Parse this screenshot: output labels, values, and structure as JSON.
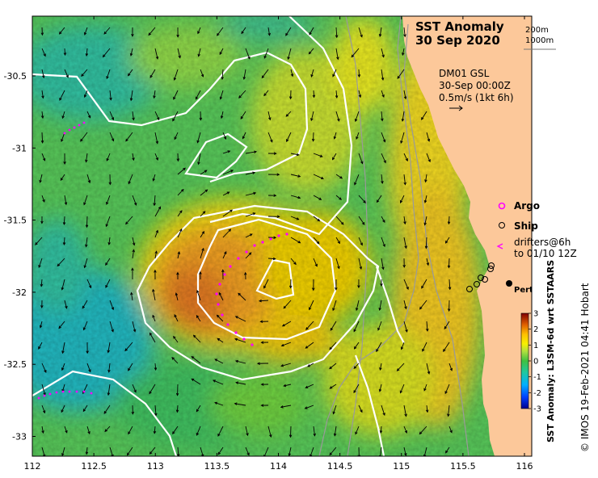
{
  "title_line1": "SST Anomaly",
  "title_line2": "30 Sep 2020",
  "depth_labels": [
    "200m",
    "1000m"
  ],
  "velocity_info": {
    "line1": "DM01 GSL",
    "line2": "30-Sep 00:00Z",
    "line3": "0.5m/s (1kt 6h)"
  },
  "legend": {
    "argo": "Argo",
    "ship": "Ship",
    "drifters_line1": "drifters@6h",
    "drifters_line2": "to 01/10 12Z"
  },
  "city_label": "Perth",
  "colorbar": {
    "label": "SST Anomaly: L3SM-6d wrt SSTAARS",
    "ticks": [
      "3",
      "2",
      "1",
      "0",
      "-1",
      "-2",
      "-3"
    ],
    "colors": [
      "#00008f",
      "#0020ff",
      "#00a0ff",
      "#00d0c0",
      "#20c080",
      "#40c840",
      "#a0e040",
      "#f0f000",
      "#ffd000",
      "#f0a000",
      "#e07000",
      "#c04000",
      "#800000"
    ]
  },
  "credit": "© IMOS 19-Feb-2021 04:41 Hobart",
  "x_ticks": [
    "112",
    "112.5",
    "113",
    "113.5",
    "114",
    "114.5",
    "115",
    "115.5",
    "116"
  ],
  "y_ticks": [
    "-30.5",
    "-31",
    "-31.5",
    "-32",
    "-32.5",
    "-33"
  ],
  "colors": {
    "land": "#fcc89a",
    "coast": "#9a9a9a",
    "contour": "#ffffff",
    "drifter": "#ff00ff",
    "argo": "#ff00ff"
  }
}
